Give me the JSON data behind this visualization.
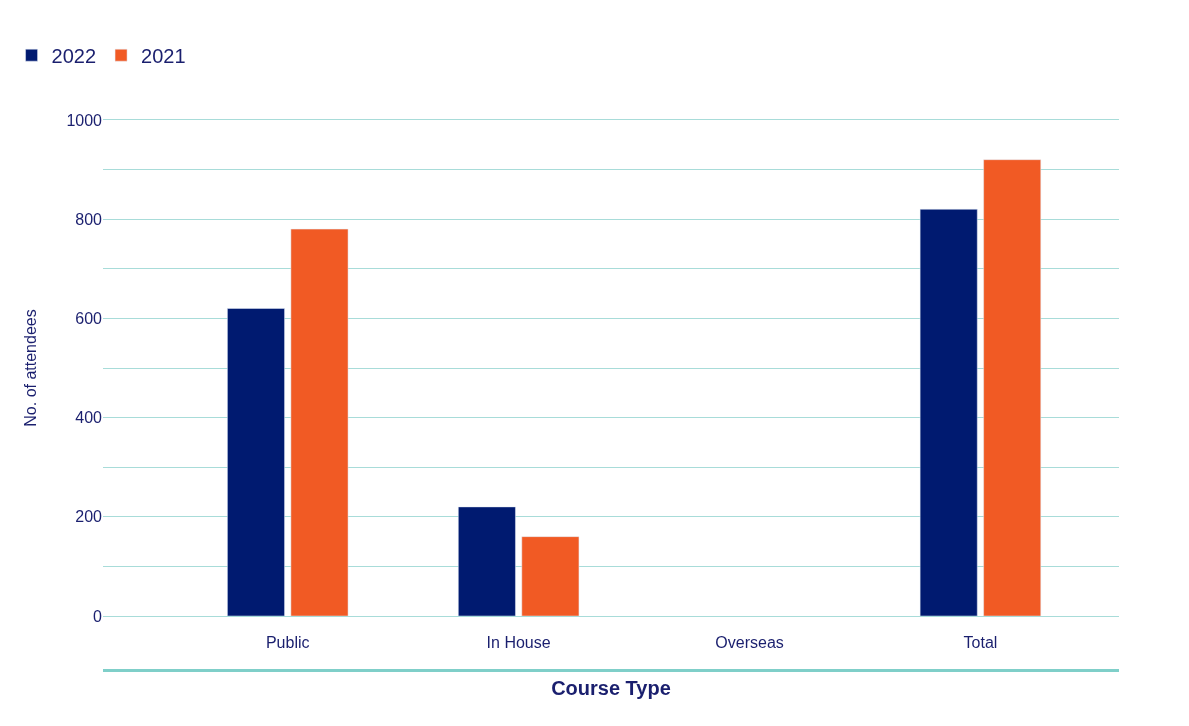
{
  "chart_data": {
    "type": "bar",
    "xlabel": "Course Type",
    "ylabel": "No. of attendees",
    "categories": [
      "Public",
      "In House",
      "Overseas",
      "Total"
    ],
    "series": [
      {
        "name": "2022",
        "color": "#001a70",
        "values": [
          620,
          220,
          null,
          820
        ]
      },
      {
        "name": "2021",
        "color": "#f15a24",
        "values": [
          780,
          160,
          null,
          920
        ]
      }
    ],
    "ylim": [
      0,
      1000
    ],
    "yticks": [
      0,
      {
        "value": 100,
        "label": null
      },
      200,
      {
        "value": 300,
        "label": null
      },
      400,
      {
        "value": 500,
        "label": null
      },
      600,
      {
        "value": 700,
        "label": null
      },
      800,
      {
        "value": 900,
        "label": null
      },
      1000
    ],
    "grid": "y",
    "legend": "top left"
  }
}
